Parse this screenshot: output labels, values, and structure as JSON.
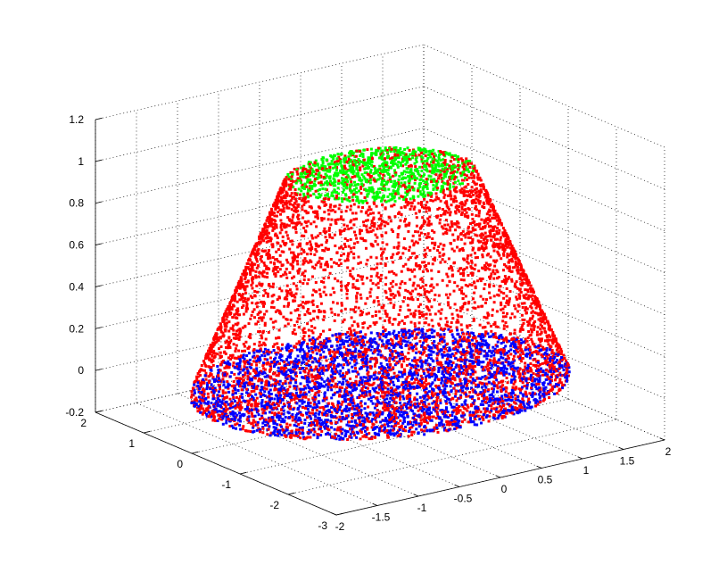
{
  "figure": {
    "background": "#ffffff"
  },
  "chart_data": {
    "type": "scatter",
    "projection": "3d",
    "grid": true,
    "xlim": [
      -2,
      2
    ],
    "ylim": [
      -3,
      2
    ],
    "zlim": [
      -0.2,
      1.2
    ],
    "x_ticks": [
      "-2",
      "-1.5",
      "-1",
      "-0.5",
      "0",
      "0.5",
      "1",
      "1.5",
      "2"
    ],
    "y_ticks": [
      "-3",
      "-2",
      "-1",
      "0",
      "1",
      "2"
    ],
    "z_ticks": [
      "-0.2",
      "0",
      "0.2",
      "0.4",
      "0.6",
      "0.8",
      "1",
      "1.2"
    ],
    "xlabel": "",
    "ylabel": "",
    "zlabel": "",
    "title": "",
    "shape": {
      "kind": "truncated cone (frustum) point cloud",
      "center_x": 0,
      "center_y": -0.5,
      "bottom_z": 0,
      "top_z": 1,
      "bottom_radius": 2,
      "top_radius": 1
    },
    "series": [
      {
        "color": "#ff0000",
        "description": "lateral surface z 0–1 and part of base disk",
        "point_count": 5200
      },
      {
        "color": "#0000ff",
        "description": "base disk at z = 0 (radius ≤ 2)",
        "point_count": 2600
      },
      {
        "color": "#00ff00",
        "description": "top disk at z = 1 (radius ≤ 1)",
        "point_count": 900
      }
    ]
  }
}
